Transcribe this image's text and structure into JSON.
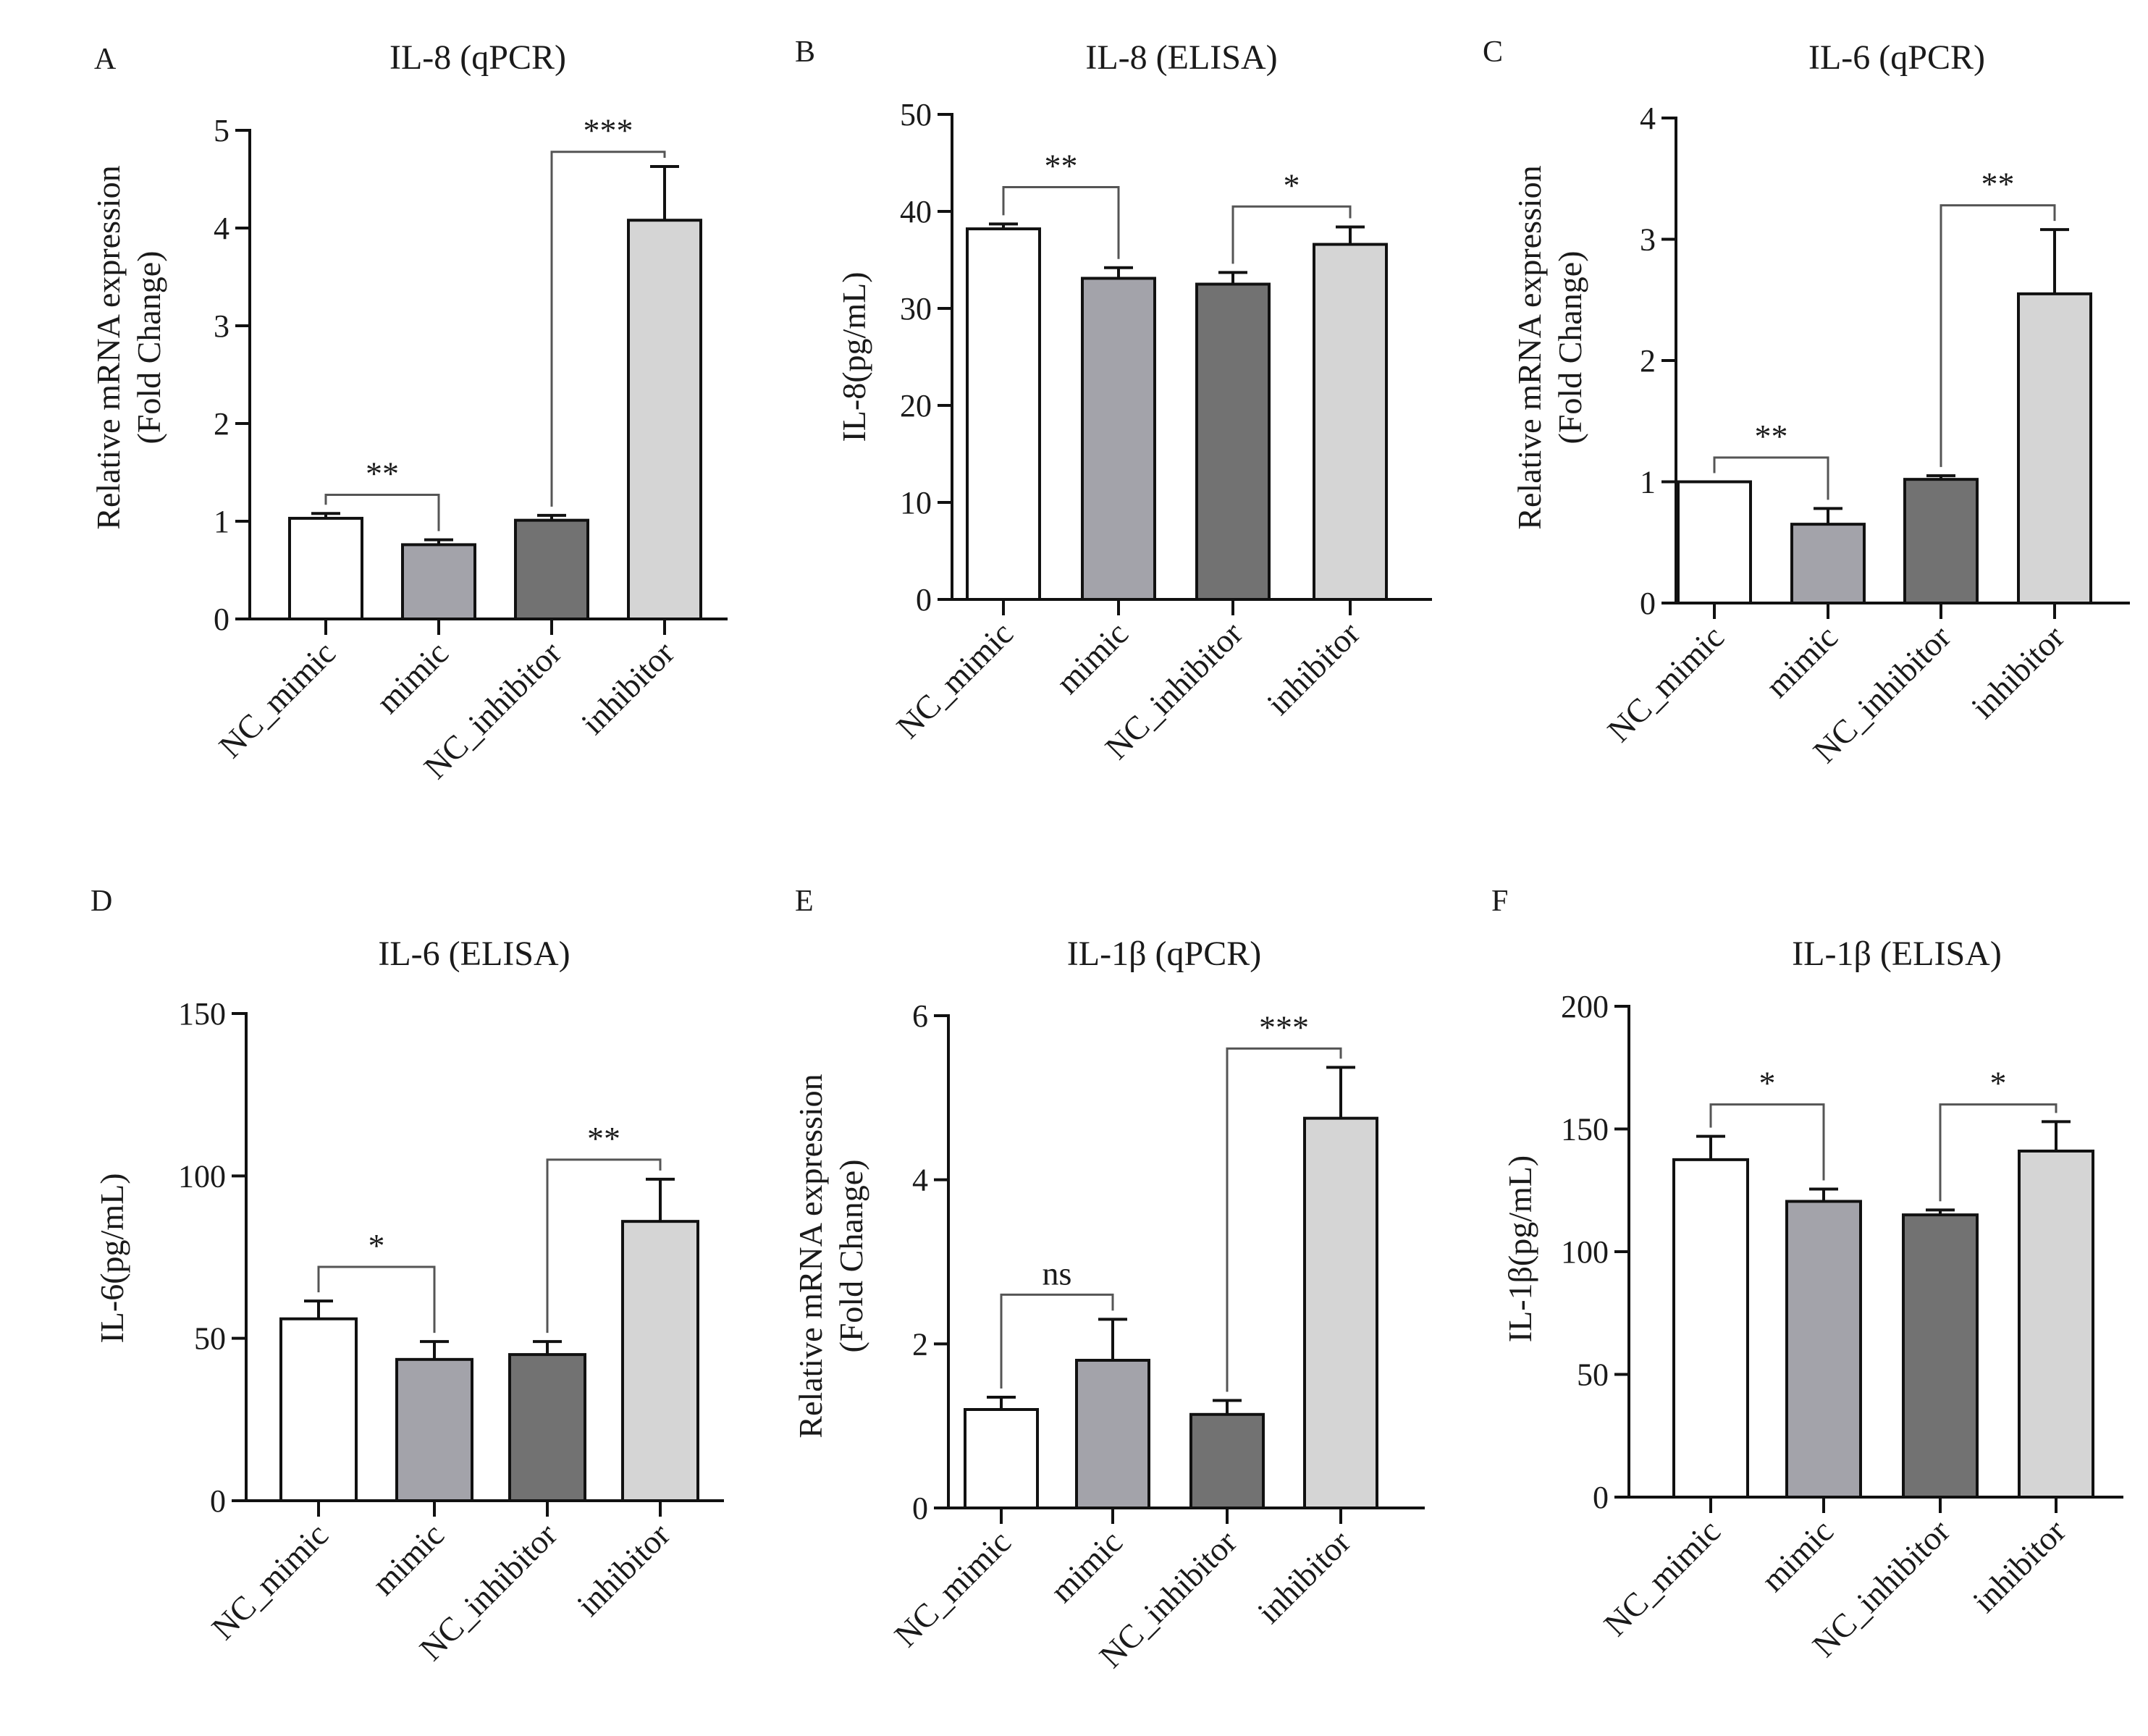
{
  "chart_data": [
    {
      "type": "bar",
      "panel_label": "A",
      "title": "IL-8 (qPCR)",
      "xlabel": "",
      "ylabel": [
        "Relative mRNA expression",
        "(Fold Change)"
      ],
      "categories": [
        "NC_mimic",
        "mimic",
        "NC_inhibitor",
        "inhibitor"
      ],
      "values": [
        1.03,
        0.76,
        1.01,
        4.08
      ],
      "errors": [
        0.05,
        0.05,
        0.05,
        0.55
      ],
      "ylim": [
        0,
        5
      ],
      "yticks": [
        0,
        1,
        2,
        3,
        4,
        5
      ],
      "significance": [
        {
          "from": 0,
          "to": 1,
          "label": "**",
          "y": 1.27
        },
        {
          "from": 2,
          "to": 3,
          "label": "***",
          "y": 4.78
        }
      ]
    },
    {
      "type": "bar",
      "panel_label": "B",
      "title": "IL-8 (ELISA)",
      "xlabel": "",
      "ylabel": [
        "IL-8(pg/mL)"
      ],
      "categories": [
        "NC_mimic",
        "mimic",
        "NC_inhibitor",
        "inhibitor"
      ],
      "values": [
        38.2,
        33.1,
        32.5,
        36.6
      ],
      "errors": [
        0.5,
        1.1,
        1.2,
        1.8
      ],
      "ylim": [
        0,
        50
      ],
      "yticks": [
        0,
        10,
        20,
        30,
        40,
        50
      ],
      "significance": [
        {
          "from": 0,
          "to": 1,
          "label": "**",
          "y": 42.5
        },
        {
          "from": 2,
          "to": 3,
          "label": "*",
          "y": 40.5
        }
      ]
    },
    {
      "type": "bar",
      "panel_label": "C",
      "title": "IL-6 (qPCR)",
      "xlabel": "",
      "ylabel": [
        "Relative mRNA expression",
        "(Fold Change)"
      ],
      "categories": [
        "NC_mimic",
        "mimic",
        "NC_inhibitor",
        "inhibitor"
      ],
      "values": [
        1.0,
        0.65,
        1.02,
        2.55
      ],
      "errors": [
        0.0,
        0.13,
        0.03,
        0.53
      ],
      "ylim": [
        0,
        4
      ],
      "yticks": [
        0,
        1,
        2,
        3,
        4
      ],
      "significance": [
        {
          "from": 0,
          "to": 1,
          "label": "**",
          "y": 1.2
        },
        {
          "from": 2,
          "to": 3,
          "label": "**",
          "y": 3.28
        }
      ]
    },
    {
      "type": "bar",
      "panel_label": "D",
      "title": "IL-6 (ELISA)",
      "xlabel": "",
      "ylabel": [
        "IL-6(pg/mL)"
      ],
      "categories": [
        "NC_mimic",
        "mimic",
        "NC_inhibitor",
        "inhibitor"
      ],
      "values": [
        56,
        43.5,
        45,
        86
      ],
      "errors": [
        5.5,
        5.5,
        4,
        13
      ],
      "ylim": [
        0,
        150
      ],
      "yticks": [
        0,
        50,
        100,
        150
      ],
      "significance": [
        {
          "from": 0,
          "to": 1,
          "label": "*",
          "y": 72
        },
        {
          "from": 2,
          "to": 3,
          "label": "**",
          "y": 105
        }
      ]
    },
    {
      "type": "bar",
      "panel_label": "E",
      "title": "IL-1β (qPCR)",
      "xlabel": "",
      "ylabel": [
        "Relative mRNA expression",
        "(Fold Change)"
      ],
      "categories": [
        "NC_mimic",
        "mimic",
        "NC_inhibitor",
        "inhibitor"
      ],
      "values": [
        1.2,
        1.8,
        1.14,
        4.75
      ],
      "errors": [
        0.15,
        0.5,
        0.17,
        0.62
      ],
      "ylim": [
        0,
        6
      ],
      "yticks": [
        0,
        2,
        4,
        6
      ],
      "significance": [
        {
          "from": 0,
          "to": 1,
          "label": "ns",
          "y": 2.6
        },
        {
          "from": 2,
          "to": 3,
          "label": "***",
          "y": 5.6
        }
      ]
    },
    {
      "type": "bar",
      "panel_label": "F",
      "title": "IL-1β (ELISA)",
      "xlabel": "",
      "ylabel": [
        "IL-1β(pg/mL)"
      ],
      "categories": [
        "NC_mimic",
        "mimic",
        "NC_inhibitor",
        "inhibitor"
      ],
      "values": [
        137.5,
        120.5,
        115,
        141
      ],
      "errors": [
        9.5,
        5,
        2,
        12
      ],
      "ylim": [
        0,
        200
      ],
      "yticks": [
        0,
        50,
        100,
        150,
        200
      ],
      "significance": [
        {
          "from": 0,
          "to": 1,
          "label": "*",
          "y": 160
        },
        {
          "from": 2,
          "to": 3,
          "label": "*",
          "y": 160
        }
      ]
    }
  ],
  "bar_colors": [
    "#ffffff",
    "#a3a3aa",
    "#727272",
    "#d5d5d5"
  ]
}
